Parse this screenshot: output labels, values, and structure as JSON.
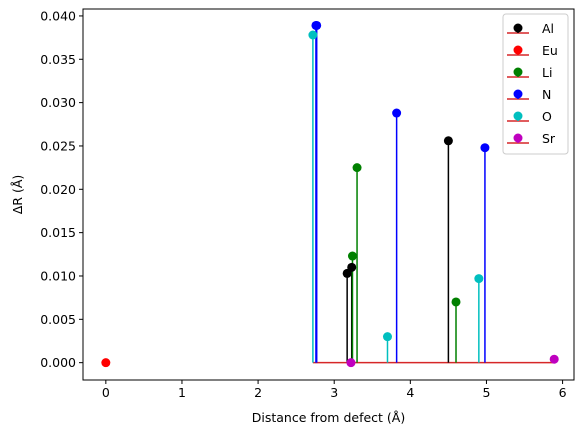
{
  "chart_data": {
    "type": "stem",
    "xlabel": "Distance from defect (Å)",
    "ylabel": "ΔR (Å)",
    "xlim": [
      -0.3,
      6.15
    ],
    "ylim": [
      -0.002,
      0.0408
    ],
    "xticks": [
      0,
      1,
      2,
      3,
      4,
      5,
      6
    ],
    "yticks": [
      0.0,
      0.005,
      0.01,
      0.015,
      0.02,
      0.025,
      0.03,
      0.035,
      0.04
    ],
    "ytick_labels": [
      "0.000",
      "0.005",
      "0.010",
      "0.015",
      "0.020",
      "0.025",
      "0.030",
      "0.035",
      "0.040"
    ],
    "baseline": 0,
    "baseline_color": "#d62728",
    "baseline_range": [
      2.72,
      5.89
    ],
    "legend_position": "top-right",
    "series": [
      {
        "name": "Al",
        "color": "#000000",
        "x": [
          3.17,
          3.23,
          4.5
        ],
        "y": [
          0.0103,
          0.011,
          0.0256
        ]
      },
      {
        "name": "Eu",
        "color": "#ff0000",
        "x": [
          0.0
        ],
        "y": [
          0.0
        ]
      },
      {
        "name": "Li",
        "color": "#008000",
        "x": [
          3.24,
          3.3,
          4.6
        ],
        "y": [
          0.0123,
          0.0225,
          0.007
        ]
      },
      {
        "name": "N",
        "color": "#0000ff",
        "x": [
          2.76,
          2.77,
          3.82,
          4.98
        ],
        "y": [
          0.0389,
          0.0389,
          0.0288,
          0.0248
        ]
      },
      {
        "name": "O",
        "color": "#00bfbf",
        "x": [
          2.72,
          3.7,
          4.9
        ],
        "y": [
          0.0378,
          0.003,
          0.0097
        ]
      },
      {
        "name": "Sr",
        "color": "#bf00bf",
        "x": [
          3.22,
          5.89
        ],
        "y": [
          0.0,
          0.0004
        ]
      }
    ]
  }
}
